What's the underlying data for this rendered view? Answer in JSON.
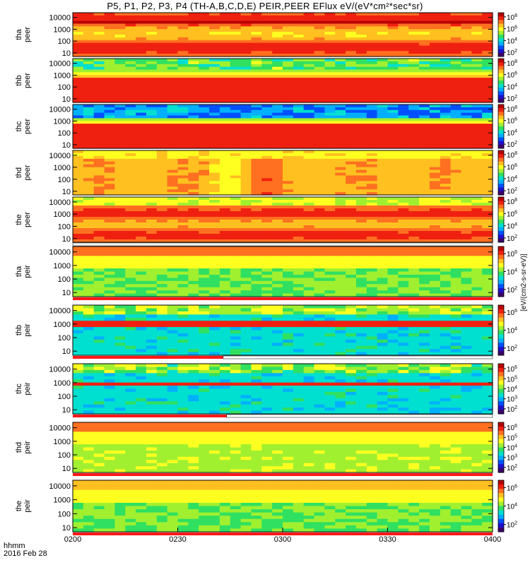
{
  "title": "P5, P1, P2, P3, P4 (TH-A,B,C,D,E) PEIR,PEER EFlux eV/(eV*cm²*sec*sr)",
  "time_axis": {
    "unit_label": "hhmm",
    "date_label": "2016 Feb 28"
  },
  "colorbar_label": "[eV/(cm2-s-sr-eV)]",
  "colors": {
    "scale": [
      "#3a0068",
      "#2010d0",
      "#0050ff",
      "#00b0ff",
      "#00e0d0",
      "#30e060",
      "#a0f030",
      "#ffff20",
      "#ffc020",
      "#ff7020",
      "#f02010",
      "#b80000"
    ],
    "status_bad": "#ff1818",
    "status_good": "#ffffff"
  },
  "chart_data": {
    "type": "heatmap",
    "x_label": "hhmm",
    "x_ticks": [
      "0200",
      "0230",
      "0300",
      "0330",
      "0400"
    ],
    "x_range": [
      "02:00",
      "04:00"
    ],
    "y_scale": "log",
    "y_range": [
      5,
      25000
    ],
    "y_ticks": [
      10,
      100,
      1000,
      10000
    ],
    "y_tick_labels": [
      "10",
      "100",
      "1000",
      "10000"
    ],
    "z_scale": "log",
    "panels": [
      {
        "probe": "tha",
        "instrument": "peer",
        "ylabel": "tha\npeer",
        "cb_exponents": [
          2,
          4,
          6,
          8
        ],
        "cb_top": 8.7,
        "cb_bot": 1.3,
        "status": []
      },
      {
        "probe": "thb",
        "instrument": "peer",
        "ylabel": "thb\npeer",
        "cb_exponents": [
          2,
          4,
          6,
          8
        ],
        "cb_top": 8.7,
        "cb_bot": 1.3,
        "status": []
      },
      {
        "probe": "thc",
        "instrument": "peer",
        "ylabel": "thc\npeer",
        "cb_exponents": [
          2,
          4,
          6,
          8
        ],
        "cb_top": 8.7,
        "cb_bot": 1.3,
        "status": []
      },
      {
        "probe": "thd",
        "instrument": "peer",
        "ylabel": "thd\npeer",
        "cb_exponents": [
          2,
          4,
          6,
          8
        ],
        "cb_top": 8.7,
        "cb_bot": 1.3,
        "status": []
      },
      {
        "probe": "the",
        "instrument": "peer",
        "ylabel": "the\npeer",
        "cb_exponents": [
          2,
          4,
          6,
          8
        ],
        "cb_top": 8.7,
        "cb_bot": 1.3,
        "status": [
          {
            "from": 0,
            "to": 120,
            "value": "good"
          }
        ]
      },
      {
        "probe": "tha",
        "instrument": "peir",
        "ylabel": "tha\npeir",
        "cb_exponents": [
          2,
          4,
          6
        ],
        "cb_top": 6.8,
        "cb_bot": 1.2,
        "status": [
          {
            "from": 0,
            "to": 120,
            "value": "bad"
          }
        ]
      },
      {
        "probe": "thb",
        "instrument": "peir",
        "ylabel": "thb\npeir",
        "cb_exponents": [
          2,
          4,
          6
        ],
        "cb_top": 6.8,
        "cb_bot": 1.2,
        "status": [
          {
            "from": 0,
            "to": 43,
            "value": "bad"
          },
          {
            "from": 43,
            "to": 120,
            "value": "good"
          }
        ]
      },
      {
        "probe": "thc",
        "instrument": "peir",
        "ylabel": "thc\npeir",
        "cb_exponents": [
          2,
          3,
          4,
          5,
          6
        ],
        "cb_top": 6.5,
        "cb_bot": 1.5,
        "status": [
          {
            "from": 0,
            "to": 44,
            "value": "bad"
          },
          {
            "from": 44,
            "to": 120,
            "value": "good"
          }
        ]
      },
      {
        "probe": "thd",
        "instrument": "peir",
        "ylabel": "thd\npeir",
        "cb_exponents": [
          2,
          3,
          4,
          5,
          6
        ],
        "cb_top": 6.5,
        "cb_bot": 1.5,
        "status": [
          {
            "from": 0,
            "to": 120,
            "value": "bad"
          }
        ]
      },
      {
        "probe": "the",
        "instrument": "peir",
        "ylabel": "the\npeir",
        "cb_exponents": [
          2,
          4,
          6
        ],
        "cb_top": 6.8,
        "cb_bot": 1.2,
        "status": [
          {
            "from": 0,
            "to": 120,
            "value": "bad"
          }
        ]
      }
    ]
  }
}
